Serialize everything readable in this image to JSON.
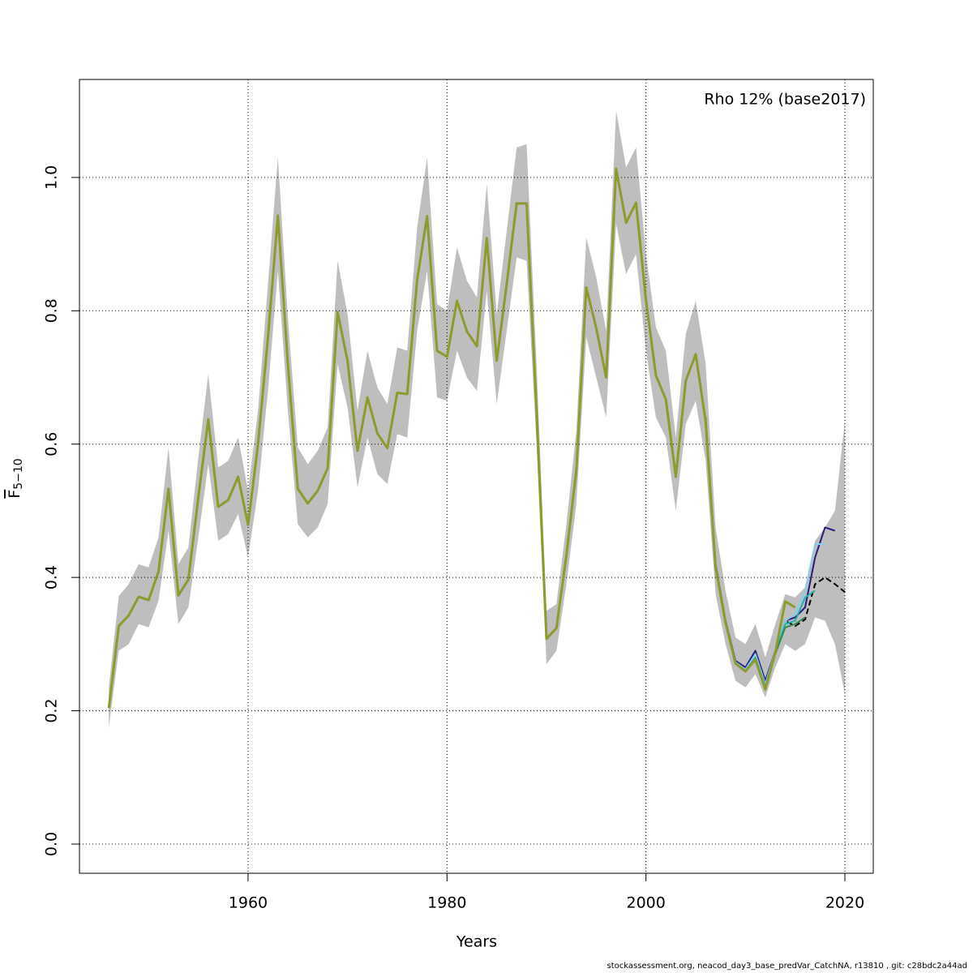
{
  "chart_data": {
    "type": "line",
    "annotation": "Rho 12% (base2017)",
    "xlabel": "Years",
    "ylabel": {
      "main": "F",
      "sub": "5−10"
    },
    "footer": "stockassessment.org, neacod_day3_base_predVar_CatchNA, r13810 , git: c28bdc2a44ad",
    "xlim": [
      1943.05,
      2022.85
    ],
    "ylim": [
      -0.0438,
      1.147
    ],
    "xticks": [
      1960,
      1980,
      2000,
      2020
    ],
    "yticks": [
      {
        "value": 0,
        "label": "0.0"
      },
      0.2,
      0.4,
      0.6,
      0.8,
      {
        "value": 1,
        "label": "1.0"
      }
    ],
    "grid": true,
    "band": {
      "color": "#bebebe",
      "x": [
        1946,
        1947,
        1948,
        1949,
        1950,
        1951,
        1952,
        1953,
        1954,
        1955,
        1956,
        1957,
        1958,
        1959,
        1960,
        1961,
        1962,
        1963,
        1964,
        1965,
        1966,
        1967,
        1968,
        1969,
        1970,
        1971,
        1972,
        1973,
        1974,
        1975,
        1976,
        1977,
        1978,
        1979,
        1980,
        1981,
        1982,
        1983,
        1984,
        1985,
        1986,
        1987,
        1988,
        1989,
        1990,
        1991,
        1992,
        1993,
        1994,
        1995,
        1996,
        1997,
        1998,
        1999,
        2000,
        2001,
        2002,
        2003,
        2004,
        2005,
        2006,
        2007,
        2008,
        2009,
        2010,
        2011,
        2012,
        2013,
        2014,
        2015,
        2016,
        2017,
        2018,
        2019,
        2020
      ],
      "lower": [
        0.175,
        0.29,
        0.3,
        0.33,
        0.325,
        0.365,
        0.47,
        0.33,
        0.355,
        0.46,
        0.57,
        0.455,
        0.465,
        0.495,
        0.43,
        0.53,
        0.68,
        0.86,
        0.65,
        0.48,
        0.46,
        0.475,
        0.51,
        0.72,
        0.655,
        0.535,
        0.61,
        0.555,
        0.54,
        0.615,
        0.61,
        0.77,
        0.86,
        0.67,
        0.665,
        0.74,
        0.7,
        0.68,
        0.83,
        0.66,
        0.77,
        0.88,
        0.875,
        0.6,
        0.27,
        0.29,
        0.39,
        0.51,
        0.76,
        0.7,
        0.64,
        0.93,
        0.855,
        0.885,
        0.74,
        0.64,
        0.61,
        0.5,
        0.63,
        0.665,
        0.575,
        0.375,
        0.3,
        0.245,
        0.235,
        0.255,
        0.22,
        0.265,
        0.3,
        0.29,
        0.3,
        0.34,
        0.335,
        0.3,
        0.225
      ],
      "upper": [
        0.235,
        0.372,
        0.39,
        0.42,
        0.415,
        0.46,
        0.595,
        0.42,
        0.445,
        0.58,
        0.705,
        0.565,
        0.575,
        0.61,
        0.53,
        0.65,
        0.84,
        1.03,
        0.79,
        0.595,
        0.57,
        0.59,
        0.625,
        0.875,
        0.795,
        0.65,
        0.74,
        0.685,
        0.66,
        0.745,
        0.74,
        0.925,
        1.03,
        0.81,
        0.8,
        0.895,
        0.845,
        0.82,
        0.99,
        0.795,
        0.92,
        1.045,
        1.05,
        0.72,
        0.35,
        0.36,
        0.48,
        0.62,
        0.91,
        0.85,
        0.77,
        1.1,
        1.015,
        1.045,
        0.885,
        0.775,
        0.74,
        0.61,
        0.765,
        0.815,
        0.72,
        0.475,
        0.38,
        0.31,
        0.3,
        0.33,
        0.28,
        0.33,
        0.375,
        0.37,
        0.385,
        0.455,
        0.475,
        0.5,
        0.635
      ]
    },
    "series": [
      {
        "color": "#000000",
        "dash": true,
        "x": [
          2013,
          2014,
          2015,
          2016,
          2017,
          2018,
          2019,
          2020
        ],
        "values": [
          0.287,
          0.335,
          0.327,
          0.337,
          0.39,
          0.4,
          0.39,
          0.378
        ]
      },
      {
        "color": "#2a1a80",
        "x": [
          2006,
          2007,
          2008,
          2009,
          2010,
          2011,
          2012,
          2013,
          2014,
          2015,
          2016,
          2017,
          2018,
          2019
        ],
        "values": [
          0.64,
          0.42,
          0.335,
          0.275,
          0.265,
          0.29,
          0.245,
          0.29,
          0.335,
          0.34,
          0.355,
          0.43,
          0.475,
          0.47
        ]
      },
      {
        "color": "#87ceeb",
        "x": [
          2006,
          2007,
          2008,
          2009,
          2010,
          2011,
          2012,
          2013,
          2014,
          2015,
          2016,
          2017,
          2018
        ],
        "values": [
          0.637,
          0.418,
          0.333,
          0.273,
          0.262,
          0.285,
          0.24,
          0.29,
          0.335,
          0.345,
          0.38,
          0.45,
          0.45
        ]
      },
      {
        "color": "#20b2aa",
        "x": [
          2006,
          2007,
          2008,
          2009,
          2010,
          2011,
          2012,
          2013,
          2014,
          2015,
          2016,
          2017
        ],
        "values": [
          0.635,
          0.416,
          0.332,
          0.272,
          0.26,
          0.28,
          0.236,
          0.288,
          0.33,
          0.335,
          0.37,
          0.38
        ]
      },
      {
        "color": "#2e8b57",
        "x": [
          2006,
          2007,
          2008,
          2009,
          2010,
          2011,
          2012,
          2013,
          2014,
          2015,
          2016
        ],
        "values": [
          0.634,
          0.415,
          0.332,
          0.271,
          0.259,
          0.277,
          0.232,
          0.285,
          0.325,
          0.33,
          0.34
        ]
      },
      {
        "color": "#8e9a2c",
        "width": 3,
        "x": [
          1946,
          1947,
          1948,
          1949,
          1950,
          1951,
          1952,
          1953,
          1954,
          1955,
          1956,
          1957,
          1958,
          1959,
          1960,
          1961,
          1962,
          1963,
          1964,
          1965,
          1966,
          1967,
          1968,
          1969,
          1970,
          1971,
          1972,
          1973,
          1974,
          1975,
          1976,
          1977,
          1978,
          1979,
          1980,
          1981,
          1982,
          1983,
          1984,
          1985,
          1986,
          1987,
          1988,
          1989,
          1990,
          1991,
          1992,
          1993,
          1994,
          1995,
          1996,
          1997,
          1998,
          1999,
          2000,
          2001,
          2002,
          2003,
          2004,
          2005,
          2006,
          2007,
          2008,
          2009,
          2010,
          2011,
          2012,
          2013,
          2014,
          2015
        ],
        "values": [
          0.204,
          0.327,
          0.343,
          0.371,
          0.366,
          0.409,
          0.533,
          0.373,
          0.397,
          0.52,
          0.637,
          0.506,
          0.516,
          0.551,
          0.479,
          0.6,
          0.76,
          0.943,
          0.72,
          0.533,
          0.511,
          0.53,
          0.564,
          0.798,
          0.725,
          0.59,
          0.67,
          0.616,
          0.594,
          0.677,
          0.675,
          0.847,
          0.942,
          0.74,
          0.731,
          0.815,
          0.769,
          0.747,
          0.909,
          0.725,
          0.84,
          0.961,
          0.961,
          0.65,
          0.308,
          0.324,
          0.433,
          0.561,
          0.835,
          0.774,
          0.7,
          1.013,
          0.932,
          0.962,
          0.816,
          0.703,
          0.667,
          0.551,
          0.695,
          0.735,
          0.634,
          0.415,
          0.332,
          0.271,
          0.259,
          0.277,
          0.232,
          0.287,
          0.364,
          0.355
        ]
      }
    ]
  }
}
